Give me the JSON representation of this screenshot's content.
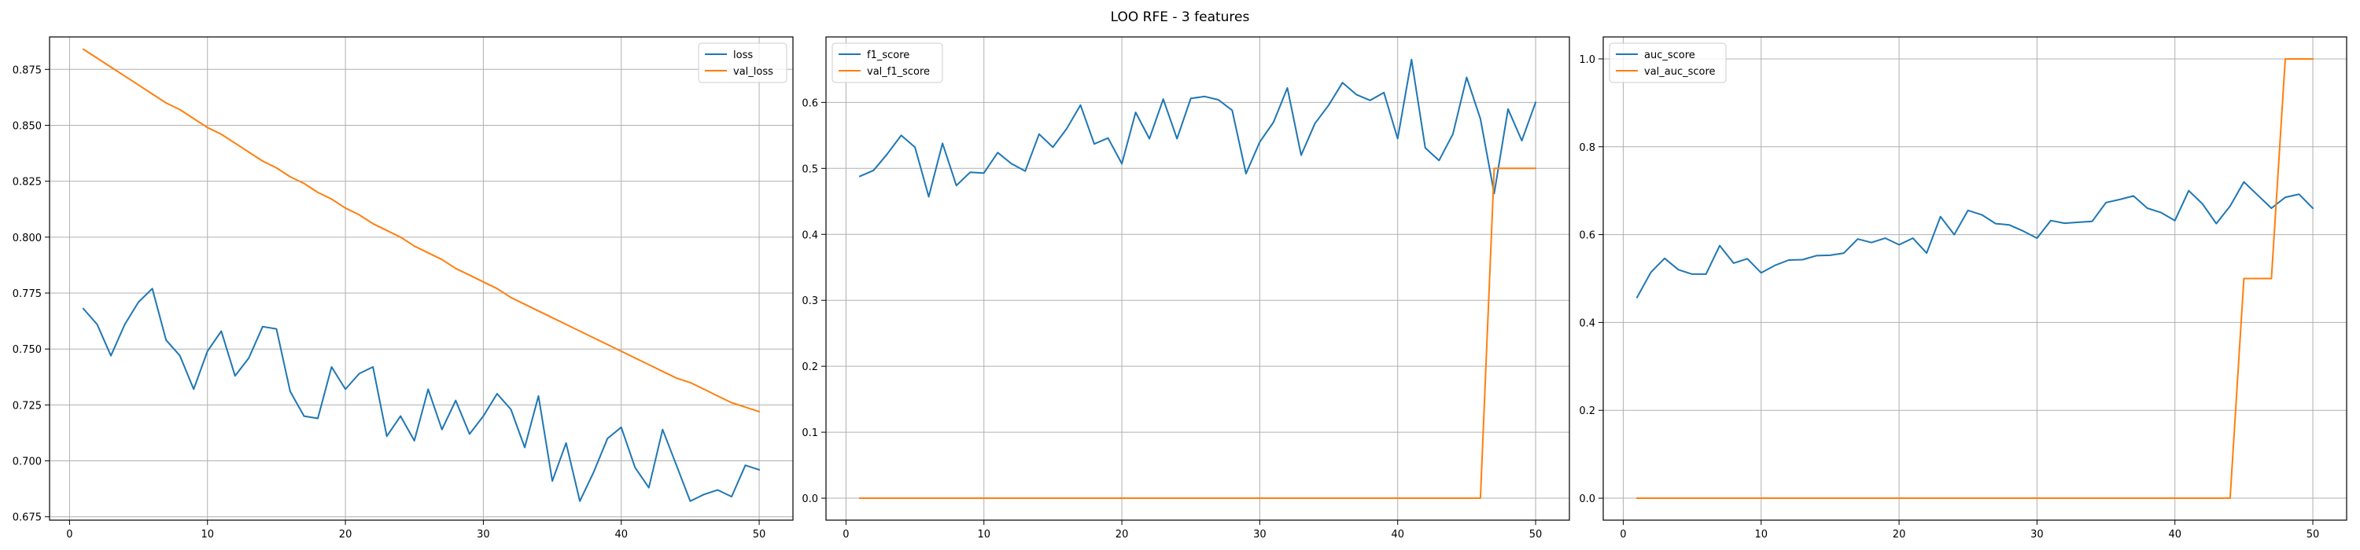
{
  "suptitle": "LOO RFE - 3 features",
  "colors": {
    "series1": "#1f77b4",
    "series2": "#ff7f0e",
    "grid": "#b0b0b0",
    "axis": "#000000"
  },
  "chart_data": [
    {
      "type": "line",
      "title": "",
      "xlabel": "",
      "ylabel": "",
      "xlim": [
        -1.45,
        52.45
      ],
      "ylim": [
        0.6735,
        0.8895
      ],
      "xticks": [
        0,
        10,
        20,
        30,
        40,
        50
      ],
      "xtick_labels": [
        "0",
        "10",
        "20",
        "30",
        "40",
        "50"
      ],
      "yticks": [
        0.675,
        0.7,
        0.725,
        0.75,
        0.775,
        0.8,
        0.825,
        0.85,
        0.875
      ],
      "ytick_labels": [
        "0.675",
        "0.700",
        "0.725",
        "0.750",
        "0.775",
        "0.800",
        "0.825",
        "0.850",
        "0.875"
      ],
      "grid": true,
      "legend_loc": "top-right",
      "x": [
        1,
        2,
        3,
        4,
        5,
        6,
        7,
        8,
        9,
        10,
        11,
        12,
        13,
        14,
        15,
        16,
        17,
        18,
        19,
        20,
        21,
        22,
        23,
        24,
        25,
        26,
        27,
        28,
        29,
        30,
        31,
        32,
        33,
        34,
        35,
        36,
        37,
        38,
        39,
        40,
        41,
        42,
        43,
        44,
        45,
        46,
        47,
        48,
        49,
        50
      ],
      "series": [
        {
          "name": "loss",
          "color": "#1f77b4",
          "values": [
            0.768,
            0.761,
            0.747,
            0.761,
            0.771,
            0.777,
            0.754,
            0.747,
            0.732,
            0.749,
            0.758,
            0.738,
            0.746,
            0.76,
            0.759,
            0.731,
            0.72,
            0.719,
            0.742,
            0.732,
            0.739,
            0.742,
            0.711,
            0.72,
            0.709,
            0.732,
            0.714,
            0.727,
            0.712,
            0.72,
            0.73,
            0.723,
            0.706,
            0.729,
            0.691,
            0.708,
            0.682,
            0.695,
            0.71,
            0.715,
            0.697,
            0.688,
            0.714,
            0.698,
            0.682,
            0.685,
            0.687,
            0.684,
            0.698,
            0.696
          ]
        },
        {
          "name": "val_loss",
          "color": "#ff7f0e",
          "values": [
            0.884,
            0.88,
            0.876,
            0.872,
            0.868,
            0.864,
            0.86,
            0.857,
            0.853,
            0.849,
            0.846,
            0.842,
            0.838,
            0.834,
            0.831,
            0.827,
            0.824,
            0.82,
            0.817,
            0.813,
            0.81,
            0.806,
            0.803,
            0.8,
            0.796,
            0.793,
            0.79,
            0.786,
            0.783,
            0.78,
            0.777,
            0.773,
            0.77,
            0.767,
            0.764,
            0.761,
            0.758,
            0.755,
            0.752,
            0.749,
            0.746,
            0.743,
            0.74,
            0.737,
            0.735,
            0.732,
            0.729,
            0.726,
            0.724,
            0.722
          ]
        }
      ]
    },
    {
      "type": "line",
      "title": "",
      "xlabel": "",
      "ylabel": "",
      "xlim": [
        -1.45,
        52.45
      ],
      "ylim": [
        -0.0333,
        0.6993
      ],
      "xticks": [
        0,
        10,
        20,
        30,
        40,
        50
      ],
      "xtick_labels": [
        "0",
        "10",
        "20",
        "30",
        "40",
        "50"
      ],
      "yticks": [
        0,
        0.1,
        0.2,
        0.3,
        0.4,
        0.5,
        0.6
      ],
      "ytick_labels": [
        "0.0",
        "0.1",
        "0.2",
        "0.3",
        "0.4",
        "0.5",
        "0.6"
      ],
      "grid": true,
      "legend_loc": "top-left",
      "x": [
        1,
        2,
        3,
        4,
        5,
        6,
        7,
        8,
        9,
        10,
        11,
        12,
        13,
        14,
        15,
        16,
        17,
        18,
        19,
        20,
        21,
        22,
        23,
        24,
        25,
        26,
        27,
        28,
        29,
        30,
        31,
        32,
        33,
        34,
        35,
        36,
        37,
        38,
        39,
        40,
        41,
        42,
        43,
        44,
        45,
        46,
        47,
        48,
        49,
        50
      ],
      "series": [
        {
          "name": "f1_score",
          "color": "#1f77b4",
          "values": [
            0.488,
            0.497,
            0.522,
            0.55,
            0.532,
            0.457,
            0.538,
            0.474,
            0.494,
            0.493,
            0.524,
            0.507,
            0.496,
            0.552,
            0.532,
            0.56,
            0.596,
            0.537,
            0.546,
            0.507,
            0.585,
            0.545,
            0.605,
            0.545,
            0.606,
            0.609,
            0.604,
            0.588,
            0.492,
            0.54,
            0.57,
            0.622,
            0.52,
            0.568,
            0.596,
            0.63,
            0.612,
            0.603,
            0.615,
            0.545,
            0.665,
            0.531,
            0.512,
            0.552,
            0.638,
            0.575,
            0.462,
            0.59,
            0.542,
            0.6
          ]
        },
        {
          "name": "val_f1_score",
          "color": "#ff7f0e",
          "values": [
            0,
            0,
            0,
            0,
            0,
            0,
            0,
            0,
            0,
            0,
            0,
            0,
            0,
            0,
            0,
            0,
            0,
            0,
            0,
            0,
            0,
            0,
            0,
            0,
            0,
            0,
            0,
            0,
            0,
            0,
            0,
            0,
            0,
            0,
            0,
            0,
            0,
            0,
            0,
            0,
            0,
            0,
            0,
            0,
            0,
            0,
            0.5,
            0.5,
            0.5,
            0.5
          ]
        }
      ]
    },
    {
      "type": "line",
      "title": "",
      "xlabel": "",
      "ylabel": "",
      "xlim": [
        -1.45,
        52.45
      ],
      "ylim": [
        -0.05,
        1.05
      ],
      "xticks": [
        0,
        10,
        20,
        30,
        40,
        50
      ],
      "xtick_labels": [
        "0",
        "10",
        "20",
        "30",
        "40",
        "50"
      ],
      "yticks": [
        0,
        0.2,
        0.4,
        0.6,
        0.8,
        1.0
      ],
      "ytick_labels": [
        "0.0",
        "0.2",
        "0.4",
        "0.6",
        "0.8",
        "1.0"
      ],
      "grid": true,
      "legend_loc": "top-left",
      "x": [
        1,
        2,
        3,
        4,
        5,
        6,
        7,
        8,
        9,
        10,
        11,
        12,
        13,
        14,
        15,
        16,
        17,
        18,
        19,
        20,
        21,
        22,
        23,
        24,
        25,
        26,
        27,
        28,
        29,
        30,
        31,
        32,
        33,
        34,
        35,
        36,
        37,
        38,
        39,
        40,
        41,
        42,
        43,
        44,
        45,
        46,
        47,
        48,
        49,
        50
      ],
      "series": [
        {
          "name": "auc_score",
          "color": "#1f77b4",
          "values": [
            0.457,
            0.514,
            0.546,
            0.52,
            0.51,
            0.51,
            0.575,
            0.535,
            0.545,
            0.513,
            0.53,
            0.542,
            0.543,
            0.552,
            0.553,
            0.558,
            0.59,
            0.582,
            0.592,
            0.577,
            0.592,
            0.558,
            0.641,
            0.6,
            0.655,
            0.645,
            0.625,
            0.622,
            0.608,
            0.592,
            0.632,
            0.626,
            0.628,
            0.63,
            0.673,
            0.68,
            0.688,
            0.66,
            0.65,
            0.632,
            0.7,
            0.67,
            0.625,
            0.665,
            0.72,
            0.69,
            0.66,
            0.685,
            0.692,
            0.66
          ]
        },
        {
          "name": "val_auc_score",
          "color": "#ff7f0e",
          "values": [
            0,
            0,
            0,
            0,
            0,
            0,
            0,
            0,
            0,
            0,
            0,
            0,
            0,
            0,
            0,
            0,
            0,
            0,
            0,
            0,
            0,
            0,
            0,
            0,
            0,
            0,
            0,
            0,
            0,
            0,
            0,
            0,
            0,
            0,
            0,
            0,
            0,
            0,
            0,
            0,
            0,
            0,
            0,
            0,
            0.5,
            0.5,
            0.5,
            1.0,
            1.0,
            1.0
          ]
        }
      ]
    }
  ]
}
